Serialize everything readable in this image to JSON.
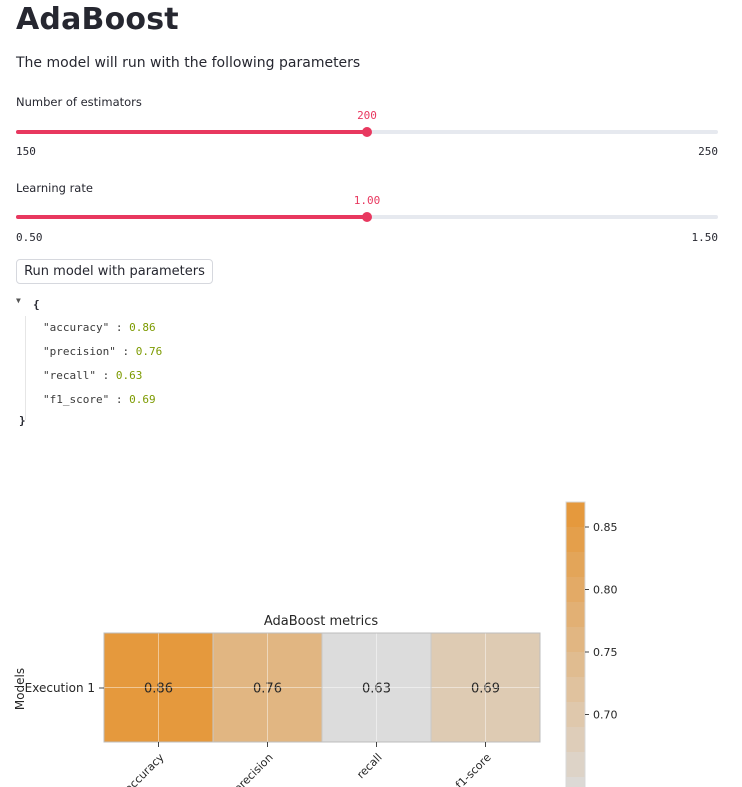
{
  "page": {
    "title": "AdaBoost",
    "subtitle": "The model will run with the following parameters"
  },
  "sliders": [
    {
      "label": "Number of estimators",
      "value": "200",
      "min": "150",
      "max": "250",
      "fraction": 0.5
    },
    {
      "label": "Learning rate",
      "value": "1.00",
      "min": "0.50",
      "max": "1.50",
      "fraction": 0.5
    }
  ],
  "run_button": {
    "label": "Run model with parameters"
  },
  "json_output": {
    "open_brace": "{",
    "close_brace": "}",
    "entries": [
      {
        "key": "\"accuracy\"",
        "value": "0.86"
      },
      {
        "key": "\"precision\"",
        "value": "0.76"
      },
      {
        "key": "\"recall\"",
        "value": "0.63"
      },
      {
        "key": "\"f1_score\"",
        "value": "0.69"
      }
    ]
  },
  "chart_data": {
    "type": "heatmap",
    "title": "AdaBoost metrics",
    "ylabel": "Models",
    "rows": [
      "Execution 1"
    ],
    "columns": [
      "accuracy",
      "precision",
      "recall",
      "f1-score"
    ],
    "values": [
      [
        0.86,
        0.76,
        0.63,
        0.69
      ]
    ],
    "annotations": [
      "0.86",
      "0.76",
      "0.63",
      "0.69"
    ],
    "colorbar": {
      "ticks": [
        "0.85",
        "0.80",
        "0.75",
        "0.70"
      ],
      "tick_values": [
        0.85,
        0.8,
        0.75,
        0.7
      ],
      "range": [
        0.63,
        0.86
      ]
    },
    "grid": true,
    "colors": {
      "low": "#dcdcdc",
      "high": "#e5993d"
    }
  }
}
